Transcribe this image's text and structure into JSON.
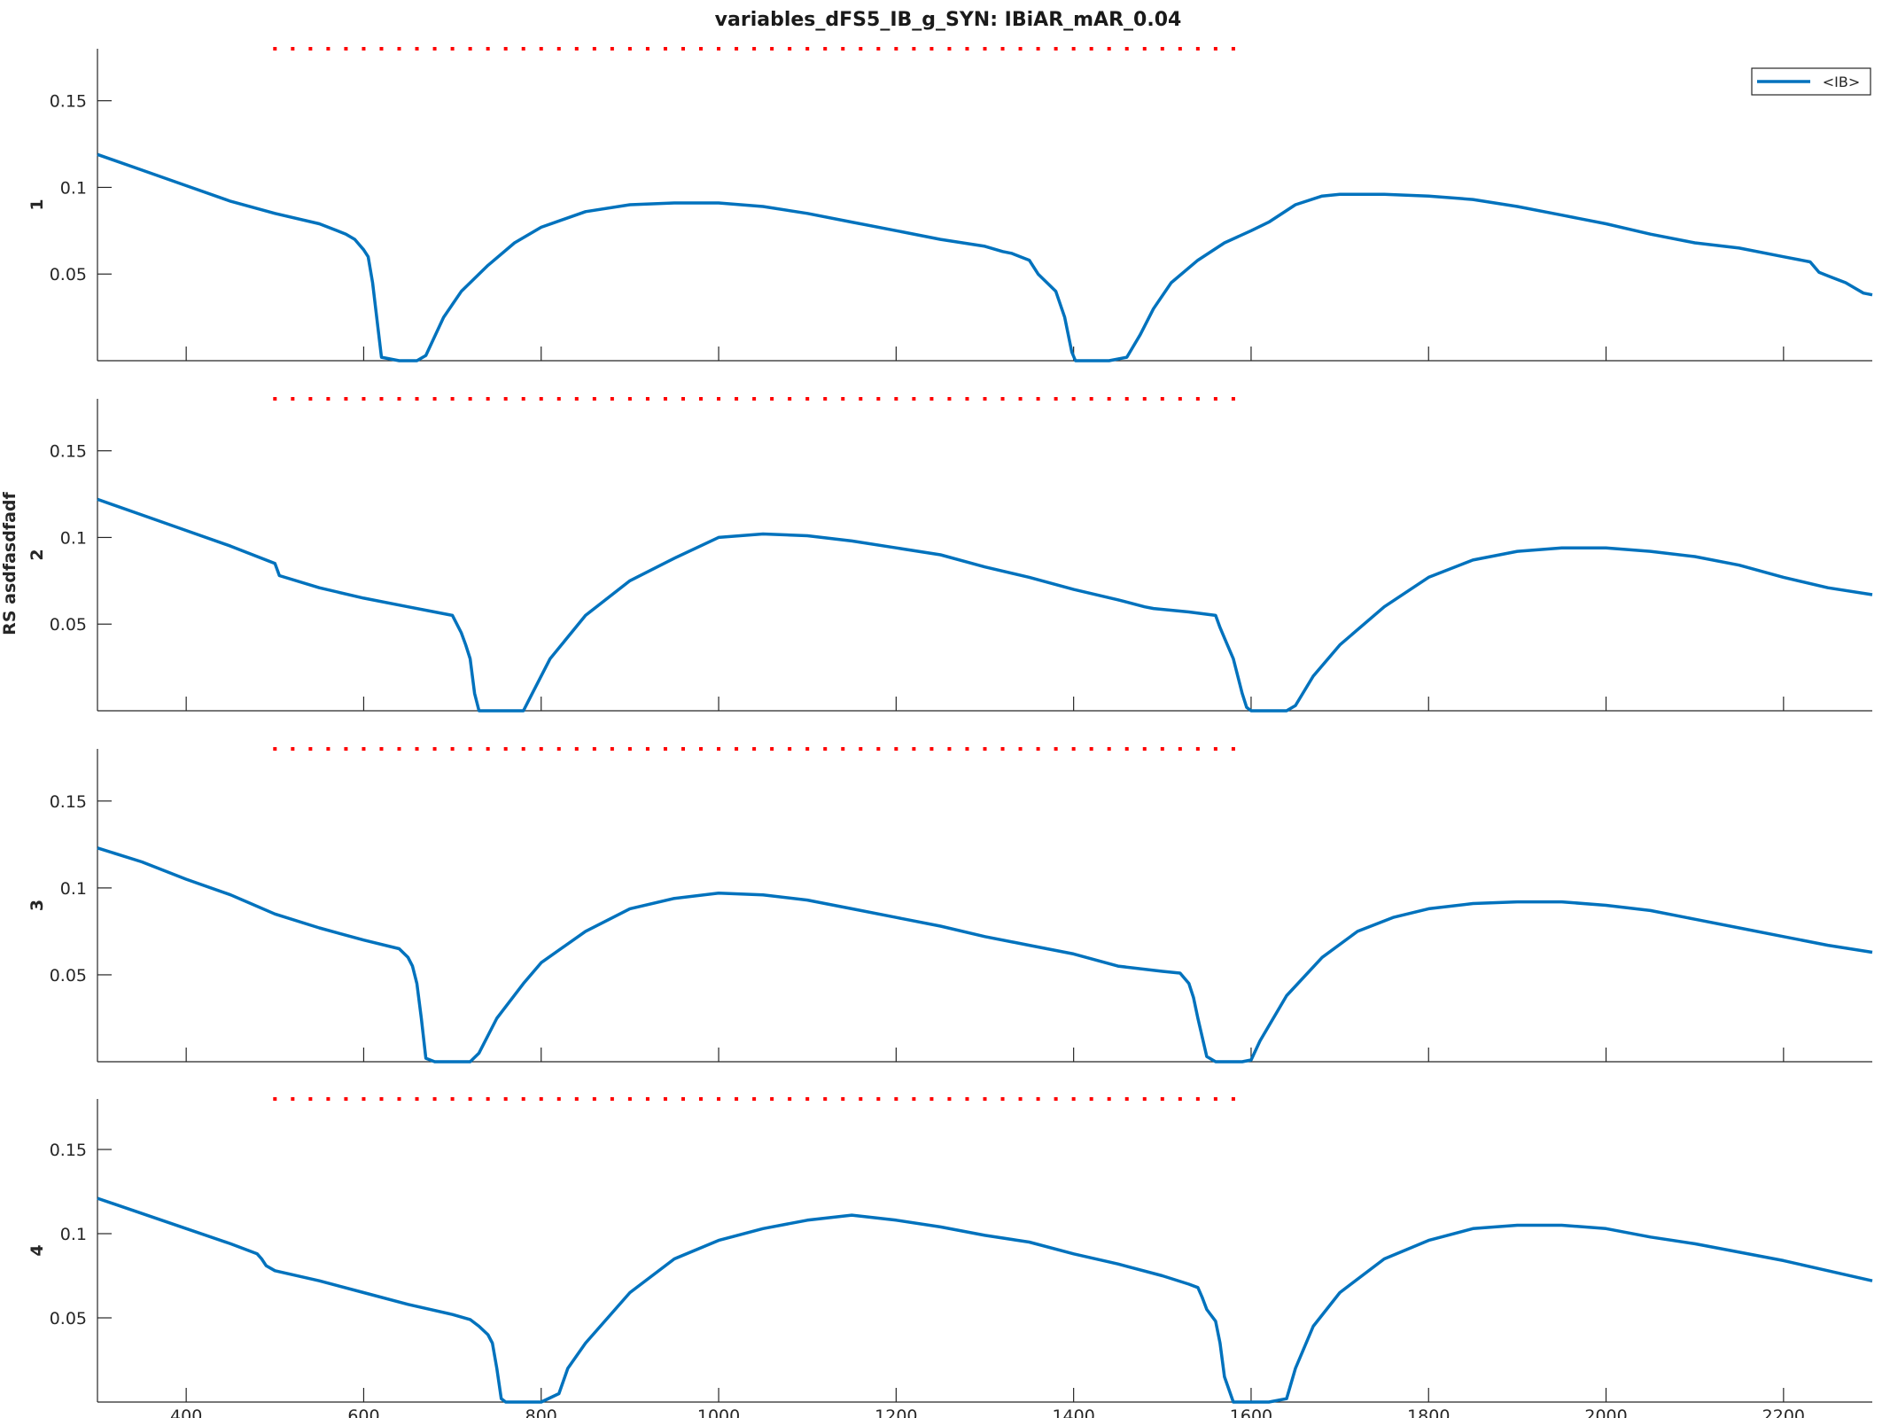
{
  "figure_title": "variables_dFS5_IB_g_SYN: IBiAR_mAR_0.04",
  "shared_ylabel": "RS asdfasdfadf",
  "legend": {
    "label": "<IB>",
    "placement": "top-right"
  },
  "colors": {
    "series": "#0072BD",
    "threshold": "#FF0000",
    "axis": "#262626"
  },
  "chart_data": [
    {
      "type": "line",
      "ylabel": "1",
      "xlim": [
        300,
        2300
      ],
      "ylim": [
        0,
        0.18
      ],
      "xticks": [
        400,
        600,
        800,
        1000,
        1200,
        1400,
        1600,
        1800,
        2000,
        2200
      ],
      "yticks": [
        0.05,
        0.1,
        0.15
      ],
      "ytick_labels": [
        "0.05",
        "0.1",
        "0.15"
      ],
      "show_xtick_labels": false,
      "threshold": {
        "y": 0.18,
        "x_start": 500,
        "x_end": 1580,
        "style": "dotted"
      },
      "series": [
        {
          "name": "<IB>",
          "x": [
            300,
            350,
            400,
            450,
            500,
            550,
            560,
            570,
            580,
            590,
            595,
            600,
            605,
            610,
            620,
            640,
            660,
            670,
            690,
            710,
            740,
            770,
            800,
            850,
            900,
            950,
            1000,
            1050,
            1100,
            1150,
            1200,
            1250,
            1300,
            1320,
            1330,
            1340,
            1350,
            1360,
            1380,
            1390,
            1398,
            1402,
            1405,
            1420,
            1440,
            1460,
            1475,
            1490,
            1510,
            1540,
            1570,
            1600,
            1620,
            1650,
            1680,
            1700,
            1750,
            1800,
            1850,
            1900,
            1950,
            2000,
            2050,
            2100,
            2150,
            2200,
            2230,
            2240,
            2250,
            2260,
            2270,
            2280,
            2290,
            2300
          ],
          "values": [
            0.119,
            0.11,
            0.101,
            0.092,
            0.085,
            0.079,
            0.077,
            0.075,
            0.073,
            0.07,
            0.067,
            0.064,
            0.06,
            0.045,
            0.002,
            0.0,
            0.0,
            0.003,
            0.025,
            0.04,
            0.055,
            0.068,
            0.077,
            0.086,
            0.09,
            0.091,
            0.091,
            0.089,
            0.085,
            0.08,
            0.075,
            0.07,
            0.066,
            0.063,
            0.062,
            0.06,
            0.058,
            0.05,
            0.04,
            0.025,
            0.005,
            0.0,
            0.0,
            0.0,
            0.0,
            0.002,
            0.015,
            0.03,
            0.045,
            0.058,
            0.068,
            0.075,
            0.08,
            0.09,
            0.095,
            0.096,
            0.096,
            0.095,
            0.093,
            0.089,
            0.084,
            0.079,
            0.073,
            0.068,
            0.065,
            0.06,
            0.057,
            0.051,
            0.049,
            0.047,
            0.045,
            0.042,
            0.039,
            0.038
          ]
        }
      ]
    },
    {
      "type": "line",
      "ylabel": "2",
      "xlim": [
        300,
        2300
      ],
      "ylim": [
        0,
        0.18
      ],
      "xticks": [
        400,
        600,
        800,
        1000,
        1200,
        1400,
        1600,
        1800,
        2000,
        2200
      ],
      "yticks": [
        0.05,
        0.1,
        0.15
      ],
      "ytick_labels": [
        "0.05",
        "0.1",
        "0.15"
      ],
      "show_xtick_labels": false,
      "threshold": {
        "y": 0.18,
        "x_start": 500,
        "x_end": 1580,
        "style": "dotted"
      },
      "series": [
        {
          "name": "<IB>",
          "x": [
            300,
            350,
            400,
            450,
            500,
            505,
            550,
            600,
            650,
            680,
            700,
            705,
            710,
            715,
            720,
            725,
            730,
            735,
            750,
            780,
            790,
            810,
            850,
            900,
            950,
            1000,
            1050,
            1100,
            1150,
            1200,
            1250,
            1300,
            1350,
            1400,
            1450,
            1480,
            1490,
            1530,
            1560,
            1565,
            1570,
            1580,
            1590,
            1595,
            1600,
            1620,
            1640,
            1650,
            1670,
            1700,
            1750,
            1800,
            1850,
            1900,
            1950,
            2000,
            2050,
            2100,
            2150,
            2200,
            2250,
            2300
          ],
          "values": [
            0.122,
            0.113,
            0.104,
            0.095,
            0.085,
            0.078,
            0.071,
            0.065,
            0.06,
            0.057,
            0.055,
            0.05,
            0.045,
            0.038,
            0.03,
            0.01,
            0.0,
            0.0,
            0.0,
            0.0,
            0.01,
            0.03,
            0.055,
            0.075,
            0.088,
            0.1,
            0.102,
            0.101,
            0.098,
            0.094,
            0.09,
            0.083,
            0.077,
            0.07,
            0.064,
            0.06,
            0.059,
            0.057,
            0.055,
            0.048,
            0.042,
            0.03,
            0.01,
            0.002,
            0.0,
            0.0,
            0.0,
            0.003,
            0.02,
            0.038,
            0.06,
            0.077,
            0.087,
            0.092,
            0.094,
            0.094,
            0.092,
            0.089,
            0.084,
            0.077,
            0.071,
            0.067
          ]
        }
      ]
    },
    {
      "type": "line",
      "ylabel": "3",
      "xlim": [
        300,
        2300
      ],
      "ylim": [
        0,
        0.18
      ],
      "xticks": [
        400,
        600,
        800,
        1000,
        1200,
        1400,
        1600,
        1800,
        2000,
        2200
      ],
      "yticks": [
        0.05,
        0.1,
        0.15
      ],
      "ytick_labels": [
        "0.05",
        "0.1",
        "0.15"
      ],
      "show_xtick_labels": false,
      "threshold": {
        "y": 0.18,
        "x_start": 500,
        "x_end": 1580,
        "style": "dotted"
      },
      "series": [
        {
          "name": "<IB>",
          "x": [
            300,
            350,
            400,
            450,
            500,
            550,
            600,
            640,
            650,
            655,
            660,
            665,
            670,
            680,
            700,
            720,
            730,
            750,
            780,
            800,
            850,
            900,
            950,
            1000,
            1050,
            1100,
            1150,
            1200,
            1250,
            1300,
            1350,
            1400,
            1450,
            1500,
            1520,
            1525,
            1530,
            1535,
            1540,
            1550,
            1560,
            1580,
            1590,
            1600,
            1610,
            1640,
            1680,
            1720,
            1760,
            1800,
            1850,
            1900,
            1950,
            2000,
            2050,
            2100,
            2150,
            2200,
            2250,
            2300
          ],
          "values": [
            0.123,
            0.115,
            0.105,
            0.096,
            0.085,
            0.077,
            0.07,
            0.065,
            0.06,
            0.055,
            0.045,
            0.025,
            0.002,
            0.0,
            0.0,
            0.0,
            0.005,
            0.025,
            0.045,
            0.057,
            0.075,
            0.088,
            0.094,
            0.097,
            0.096,
            0.093,
            0.088,
            0.083,
            0.078,
            0.072,
            0.067,
            0.062,
            0.055,
            0.052,
            0.051,
            0.048,
            0.045,
            0.037,
            0.025,
            0.003,
            0.0,
            0.0,
            0.0,
            0.001,
            0.012,
            0.038,
            0.06,
            0.075,
            0.083,
            0.088,
            0.091,
            0.092,
            0.092,
            0.09,
            0.087,
            0.082,
            0.077,
            0.072,
            0.067,
            0.063
          ]
        }
      ]
    },
    {
      "type": "line",
      "ylabel": "4",
      "xlim": [
        300,
        2300
      ],
      "ylim": [
        0,
        0.18
      ],
      "xticks": [
        400,
        600,
        800,
        1000,
        1200,
        1400,
        1600,
        1800,
        2000,
        2200
      ],
      "xtick_labels": [
        "400",
        "600",
        "800",
        "1000",
        "1200",
        "1400",
        "1600",
        "1800",
        "2000",
        "2200"
      ],
      "yticks": [
        0.05,
        0.1,
        0.15
      ],
      "ytick_labels": [
        "0.05",
        "0.1",
        "0.15"
      ],
      "show_xtick_labels": true,
      "threshold": {
        "y": 0.18,
        "x_start": 500,
        "x_end": 1580,
        "style": "dotted"
      },
      "series": [
        {
          "name": "<IB>",
          "x": [
            300,
            350,
            400,
            450,
            480,
            485,
            490,
            500,
            550,
            600,
            650,
            700,
            720,
            730,
            740,
            745,
            750,
            755,
            760,
            770,
            800,
            820,
            830,
            850,
            900,
            950,
            1000,
            1050,
            1100,
            1150,
            1200,
            1250,
            1300,
            1350,
            1400,
            1450,
            1500,
            1530,
            1540,
            1545,
            1550,
            1560,
            1565,
            1570,
            1580,
            1620,
            1640,
            1650,
            1670,
            1700,
            1750,
            1800,
            1850,
            1900,
            1950,
            2000,
            2050,
            2100,
            2150,
            2200,
            2250,
            2300
          ],
          "values": [
            0.121,
            0.112,
            0.103,
            0.094,
            0.088,
            0.085,
            0.081,
            0.078,
            0.072,
            0.065,
            0.058,
            0.052,
            0.049,
            0.045,
            0.04,
            0.035,
            0.02,
            0.002,
            0.0,
            0.0,
            0.0,
            0.005,
            0.02,
            0.035,
            0.065,
            0.085,
            0.096,
            0.103,
            0.108,
            0.111,
            0.108,
            0.104,
            0.099,
            0.095,
            0.088,
            0.082,
            0.075,
            0.07,
            0.068,
            0.062,
            0.055,
            0.048,
            0.035,
            0.015,
            0.0,
            0.0,
            0.002,
            0.02,
            0.045,
            0.065,
            0.085,
            0.096,
            0.103,
            0.105,
            0.105,
            0.103,
            0.098,
            0.094,
            0.089,
            0.084,
            0.078,
            0.072
          ]
        }
      ]
    }
  ]
}
